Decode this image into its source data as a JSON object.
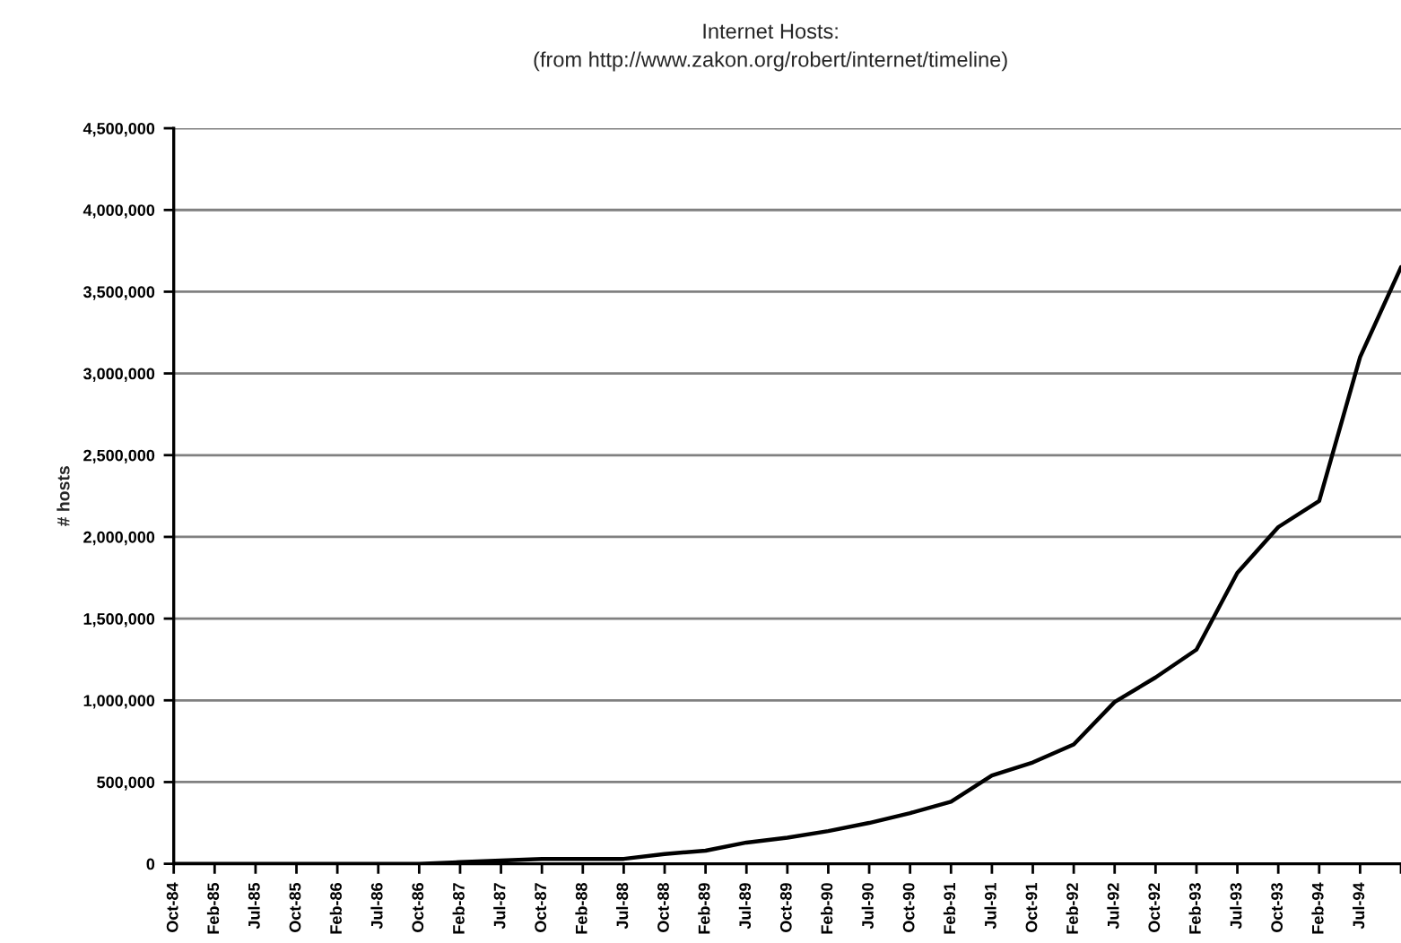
{
  "chart_data": {
    "type": "line",
    "title": "Internet Hosts:",
    "subtitle": "(from http://www.zakon.org/robert/internet/timeline)",
    "ylabel": "# hosts",
    "categories": [
      "Oct-84",
      "Feb-85",
      "Jul-85",
      "Oct-85",
      "Feb-86",
      "Jul-86",
      "Oct-86",
      "Feb-87",
      "Jul-87",
      "Oct-87",
      "Feb-88",
      "Jul-88",
      "Oct-88",
      "Feb-89",
      "Jul-89",
      "Oct-89",
      "Feb-90",
      "Jul-90",
      "Oct-90",
      "Feb-91",
      "Jul-91",
      "Oct-91",
      "Feb-92",
      "Jul-92",
      "Oct-92",
      "Feb-93",
      "Jul-93",
      "Oct-93",
      "Feb-94",
      "Jul-94",
      null
    ],
    "series": [
      {
        "color": "#000000",
        "values": [
          0,
          0,
          0,
          0,
          0,
          0,
          0,
          10000,
          20000,
          30000,
          30000,
          30000,
          60000,
          80000,
          130000,
          160000,
          200000,
          250000,
          310000,
          380000,
          540000,
          620000,
          730000,
          990000,
          1140000,
          1310000,
          1780000,
          2060000,
          2220000,
          3100000,
          3650000
        ]
      }
    ],
    "ylim": [
      0,
      4500000
    ],
    "yticks": [
      {
        "value": 0,
        "label": "0"
      },
      {
        "value": 500000,
        "label": "500,000"
      },
      {
        "value": 1000000,
        "label": "1,000,000"
      },
      {
        "value": 1500000,
        "label": "1,500,000"
      },
      {
        "value": 2000000,
        "label": "2,000,000"
      },
      {
        "value": 2500000,
        "label": "2,500,000"
      },
      {
        "value": 3000000,
        "label": "3,000,000"
      },
      {
        "value": 3500000,
        "label": "3,500,000"
      },
      {
        "value": 4000000,
        "label": "4,000,000"
      },
      {
        "value": 4500000,
        "label": "4,500,000"
      }
    ],
    "grid": "y",
    "marker": "none",
    "line_style": "solid",
    "legend": false
  }
}
